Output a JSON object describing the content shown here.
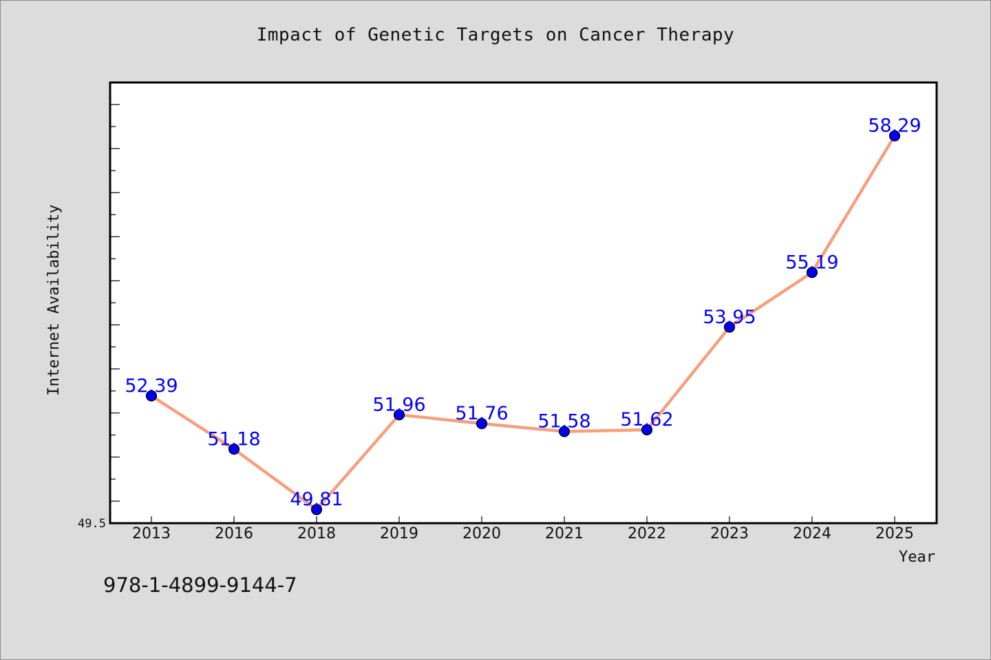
{
  "chart_data": {
    "type": "line",
    "title": "Impact of Genetic Targets on Cancer Therapy",
    "xlabel": "Year",
    "ylabel": "Internet Availability",
    "categories": [
      "2013",
      "2016",
      "2018",
      "2019",
      "2020",
      "2021",
      "2022",
      "2023",
      "2024",
      "2025"
    ],
    "series": [
      {
        "values": [
          52.39,
          51.18,
          49.81,
          51.96,
          51.76,
          51.58,
          51.62,
          53.95,
          55.19,
          58.29
        ]
      }
    ],
    "data_labels": [
      "52.39",
      "51.18",
      "49.81",
      "51.96",
      "51.76",
      "51.58",
      "51.62",
      "53.95",
      "55.19",
      "58.29"
    ],
    "y_tick_labels": [
      "49.5"
    ],
    "ylim": [
      49.5,
      59.5
    ],
    "grid": false,
    "colors": {
      "line": "#f4a07e",
      "marker": "#0000ee",
      "label": "#0000ff",
      "plot_bg": "#ffffff",
      "page_bg": "#dcdcdc"
    }
  },
  "footer_text": "978-1-4899-9144-7"
}
